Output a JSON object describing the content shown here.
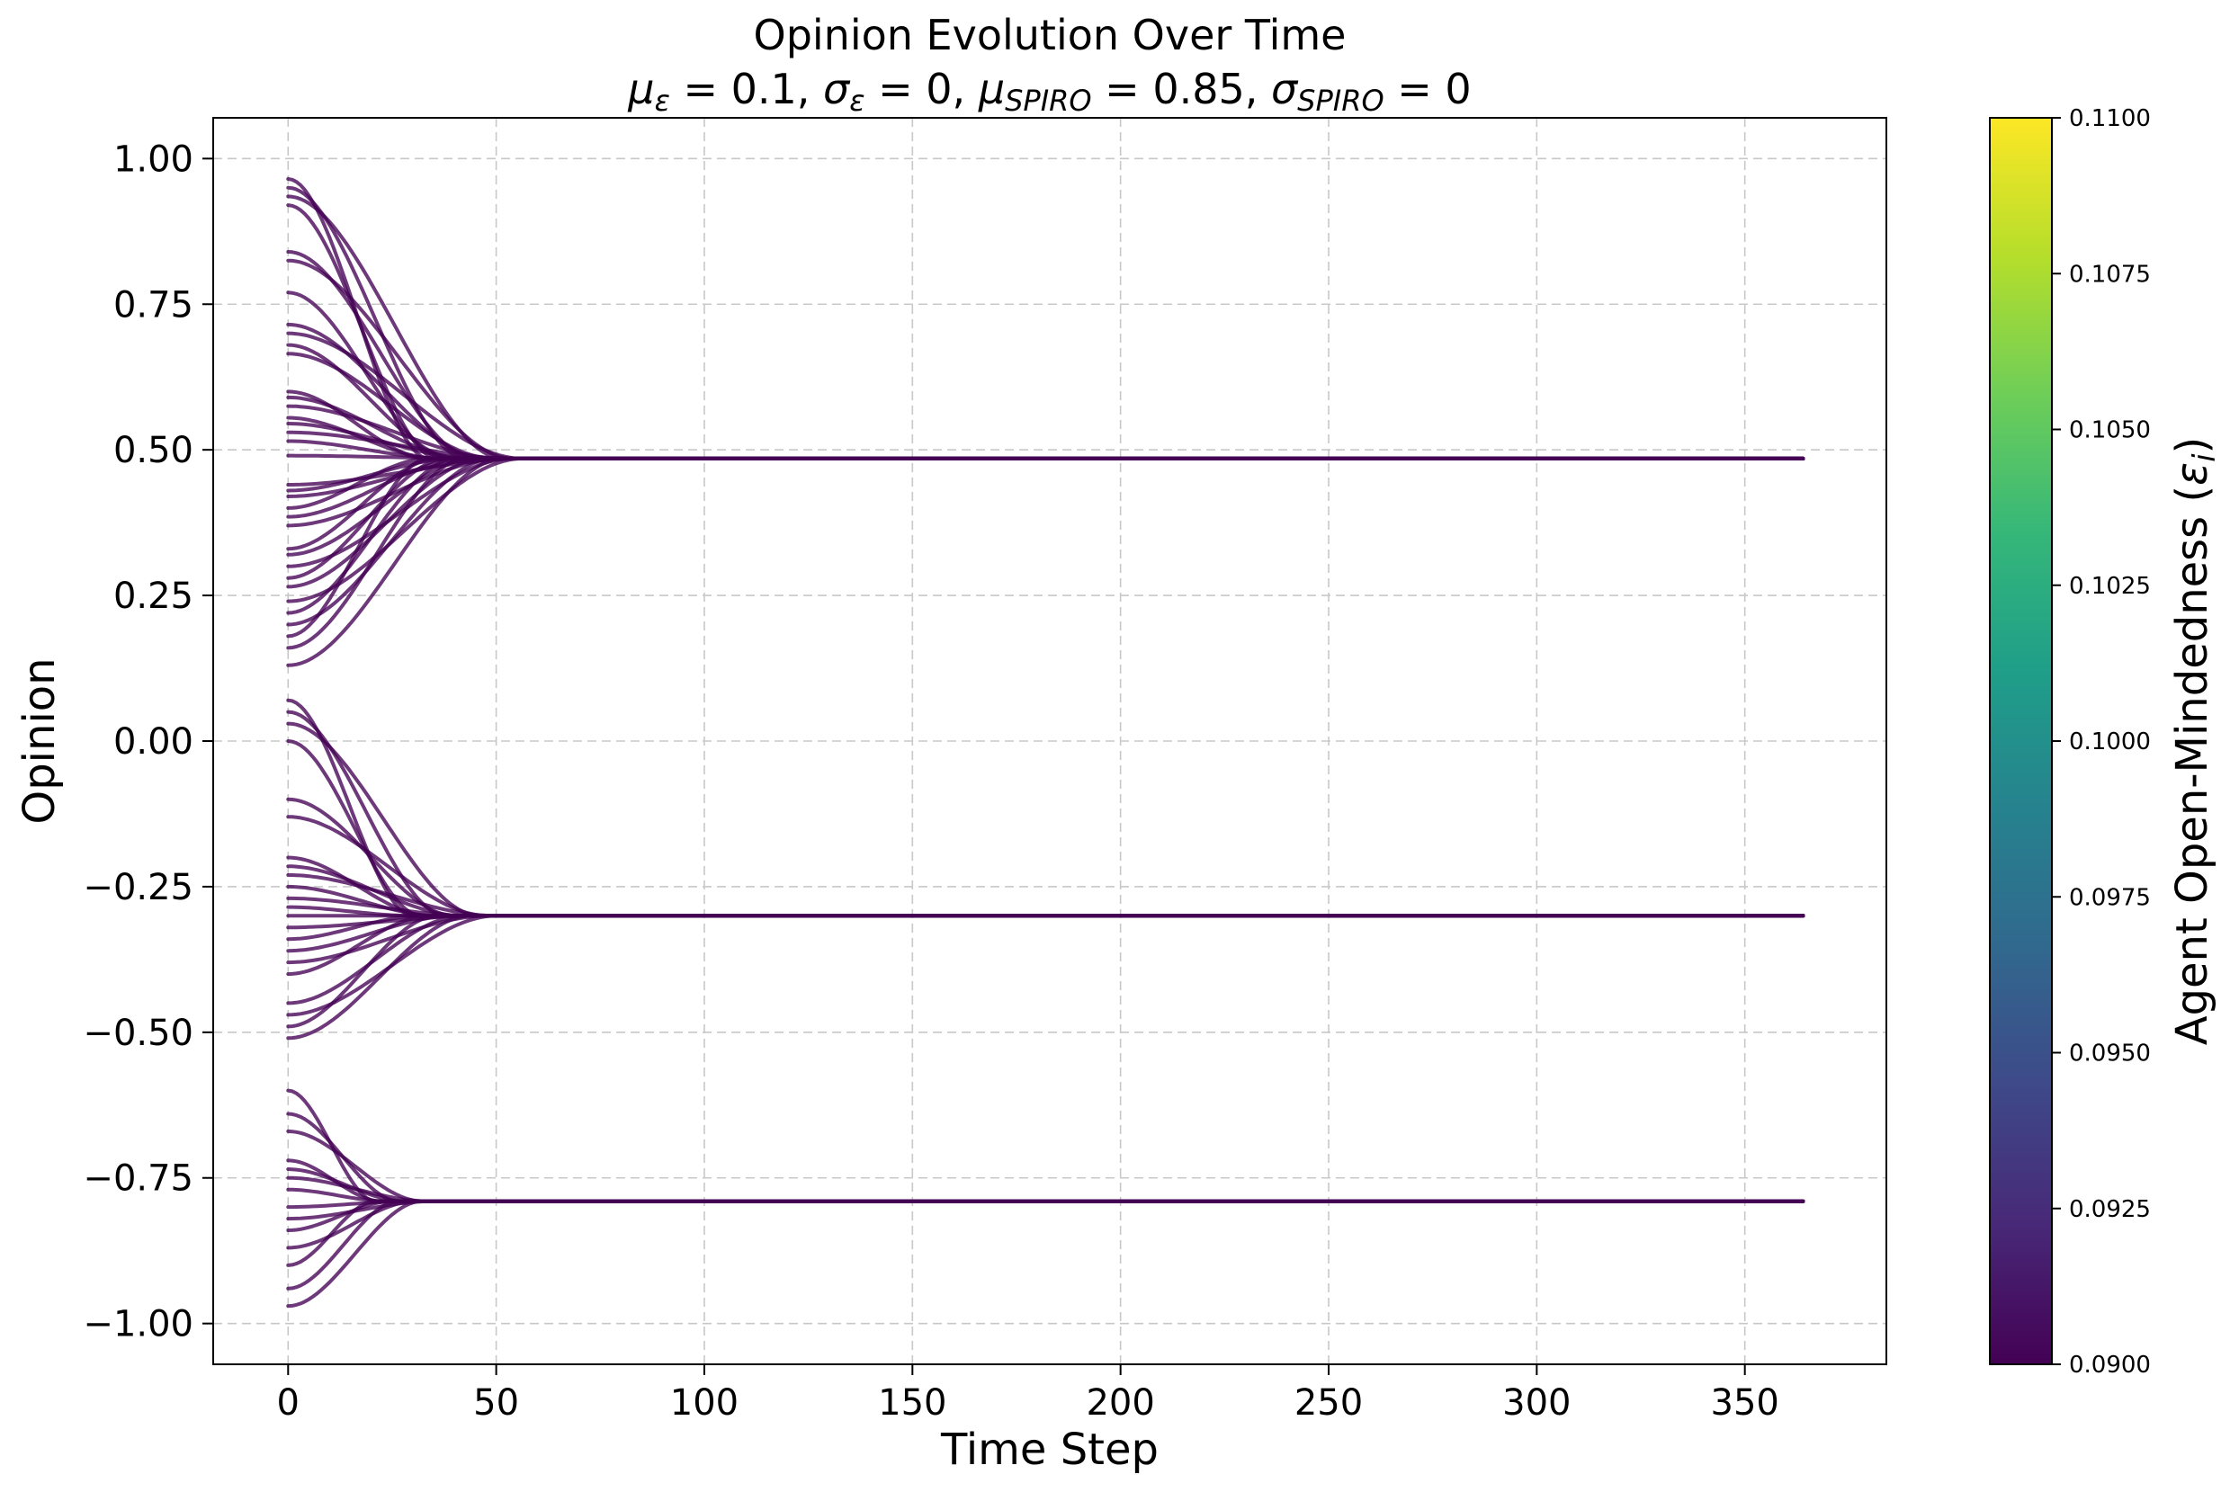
{
  "chart_data": {
    "type": "line",
    "title": "Opinion Evolution Over Time",
    "subtitle_parts": [
      {
        "t": "μ",
        "d": "n"
      },
      {
        "t": "ε",
        "d": "sub"
      },
      {
        "t": " = 0.1, ",
        "d": "n"
      },
      {
        "t": "σ",
        "d": "n"
      },
      {
        "t": "ε",
        "d": "sub"
      },
      {
        "t": " = 0, ",
        "d": "n"
      },
      {
        "t": "μ",
        "d": "n"
      },
      {
        "t": "SPIRO",
        "d": "sub"
      },
      {
        "t": " = 0.85, ",
        "d": "n"
      },
      {
        "t": "σ",
        "d": "n"
      },
      {
        "t": "SPIRO",
        "d": "sub"
      },
      {
        "t": " = 0",
        "d": "n"
      }
    ],
    "xlabel": "Time Step",
    "ylabel": "Opinion",
    "xlim": [
      -18,
      384
    ],
    "ylim": [
      -1.07,
      1.07
    ],
    "xticks": [
      0,
      50,
      100,
      150,
      200,
      250,
      300,
      350
    ],
    "xtick_labels": [
      "0",
      "50",
      "100",
      "150",
      "200",
      "250",
      "300",
      "350"
    ],
    "yticks": [
      1.0,
      0.75,
      0.5,
      0.25,
      0.0,
      -0.25,
      -0.5,
      -0.75,
      -1.0
    ],
    "ytick_labels": [
      "1.00",
      "0.75",
      "0.50",
      "0.25",
      "0.00",
      "−0.25",
      "−0.50",
      "−0.75",
      "−1.00"
    ],
    "grid": true,
    "t_max": 364,
    "line_color": "#440154",
    "series_groups": [
      {
        "converged_value": 0.485,
        "settle_time": 45,
        "initial_values": [
          0.965,
          0.95,
          0.935,
          0.92,
          0.84,
          0.825,
          0.77,
          0.715,
          0.7,
          0.68,
          0.665,
          0.6,
          0.59,
          0.575,
          0.555,
          0.545,
          0.53,
          0.515,
          0.49,
          0.44,
          0.43,
          0.42,
          0.4,
          0.385,
          0.37,
          0.33,
          0.32,
          0.3,
          0.28,
          0.265,
          0.24,
          0.22,
          0.2,
          0.18,
          0.16,
          0.13
        ]
      },
      {
        "converged_value": -0.3,
        "settle_time": 40,
        "initial_values": [
          0.07,
          0.05,
          0.03,
          0.0,
          -0.1,
          -0.13,
          -0.2,
          -0.215,
          -0.23,
          -0.25,
          -0.27,
          -0.285,
          -0.3,
          -0.32,
          -0.34,
          -0.36,
          -0.38,
          -0.4,
          -0.45,
          -0.47,
          -0.49,
          -0.51
        ]
      },
      {
        "converged_value": -0.79,
        "settle_time": 28,
        "initial_values": [
          -0.6,
          -0.64,
          -0.67,
          -0.72,
          -0.735,
          -0.75,
          -0.77,
          -0.8,
          -0.82,
          -0.84,
          -0.87,
          -0.9,
          -0.94,
          -0.97
        ]
      }
    ],
    "colorbar": {
      "label_text": "Agent Open-Mindedness (",
      "label_symbol": "ε",
      "label_sub": "i",
      "label_close": ")",
      "range": [
        0.09,
        0.11
      ],
      "ticks": [
        0.09,
        0.0925,
        0.095,
        0.0975,
        0.1,
        0.1025,
        0.105,
        0.1075,
        0.11
      ],
      "tick_labels": [
        "0.0900",
        "0.0925",
        "0.0950",
        "0.0975",
        "0.1000",
        "0.1025",
        "0.1050",
        "0.1075",
        "0.1100"
      ],
      "colormap_stops": [
        "#440154",
        "#482878",
        "#3e4989",
        "#31688e",
        "#26828e",
        "#1f9e89",
        "#35b779",
        "#6ece58",
        "#b5de2b",
        "#fde725"
      ]
    }
  }
}
